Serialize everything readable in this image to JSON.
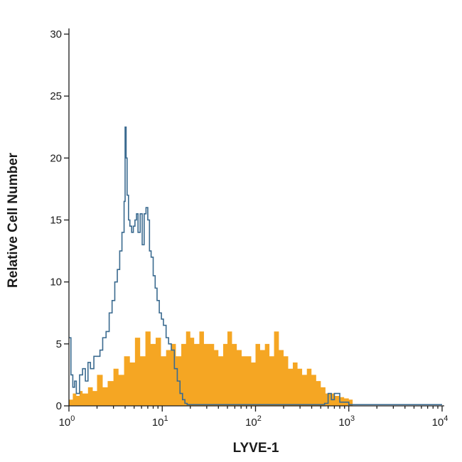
{
  "chart_data": {
    "type": "area",
    "title": "",
    "xlabel": "LYVE-1",
    "ylabel": "Relative Cell Number",
    "x_scale": "log",
    "xlim": [
      1,
      10000
    ],
    "ylim": [
      0,
      30
    ],
    "x_ticks": [
      {
        "value": 1,
        "base": "10",
        "exp": "0"
      },
      {
        "value": 10,
        "base": "10",
        "exp": "1"
      },
      {
        "value": 100,
        "base": "10",
        "exp": "2"
      },
      {
        "value": 1000,
        "base": "10",
        "exp": "3"
      },
      {
        "value": 10000,
        "base": "10",
        "exp": "4"
      }
    ],
    "y_ticks": [
      "0",
      "5",
      "10",
      "15",
      "20",
      "25",
      "30"
    ],
    "grid": false,
    "series": [
      {
        "style": "filled",
        "color": "#F5A623",
        "x": [
          1.0,
          1.1,
          1.2,
          1.3,
          1.4,
          1.6,
          1.8,
          2.0,
          2.3,
          2.6,
          3.0,
          3.4,
          3.9,
          4.5,
          5.1,
          5.8,
          6.6,
          7.5,
          8.5,
          9.7,
          11,
          12.5,
          14,
          16,
          18,
          20,
          22,
          25,
          28,
          32,
          36,
          40,
          45,
          50,
          56,
          63,
          71,
          80,
          90,
          100,
          112,
          126,
          141,
          158,
          178,
          200,
          224,
          251,
          282,
          316,
          355,
          398,
          447,
          501,
          562,
          631,
          708,
          794,
          891,
          1000,
          1100
        ],
        "y": [
          0.5,
          1.0,
          0.8,
          1.2,
          1.0,
          1.5,
          1.2,
          2.5,
          1.5,
          2.0,
          3.0,
          2.5,
          4.0,
          3.5,
          5.5,
          4.0,
          6.0,
          5.0,
          5.5,
          4.0,
          4.5,
          5.0,
          4.0,
          5.0,
          6.0,
          5.5,
          5.0,
          6.0,
          5.0,
          5.0,
          4.5,
          4.0,
          5.0,
          6.0,
          5.0,
          4.5,
          4.0,
          4.0,
          3.5,
          5.0,
          4.5,
          5.0,
          4.0,
          6.0,
          4.5,
          4.0,
          3.0,
          3.5,
          3.0,
          2.5,
          3.0,
          2.5,
          2.0,
          1.5,
          1.0,
          1.0,
          0.8,
          0.7,
          0.6,
          0.5,
          0.0
        ]
      },
      {
        "style": "line",
        "color": "#3A6A8F",
        "x": [
          1.0,
          1.05,
          1.1,
          1.15,
          1.2,
          1.3,
          1.4,
          1.5,
          1.6,
          1.7,
          1.85,
          2.0,
          2.15,
          2.3,
          2.5,
          2.7,
          2.9,
          3.1,
          3.3,
          3.5,
          3.7,
          3.9,
          4.0,
          4.1,
          4.2,
          4.35,
          4.5,
          4.7,
          4.9,
          5.1,
          5.3,
          5.5,
          5.8,
          6.1,
          6.4,
          6.7,
          7.0,
          7.3,
          7.6,
          8.0,
          8.4,
          8.8,
          9.3,
          9.8,
          10.3,
          11,
          11.7,
          12.5,
          13.5,
          14.5,
          15.5,
          16.5,
          17.5,
          18.5,
          20,
          30,
          50,
          100,
          200,
          400,
          550,
          600,
          650,
          700,
          800,
          1000,
          2000,
          5000,
          10000
        ],
        "y": [
          5.5,
          2.5,
          1.5,
          2.0,
          1.0,
          2.5,
          3.0,
          2.0,
          3.5,
          3.0,
          4.0,
          4.0,
          4.5,
          5.5,
          6.0,
          7.5,
          8.5,
          10.0,
          11.0,
          12.5,
          14.0,
          16.5,
          22.5,
          20.0,
          17.0,
          15.0,
          14.5,
          14.0,
          14.5,
          15.0,
          15.5,
          14.0,
          15.5,
          13.0,
          15.5,
          16.0,
          15.0,
          12.5,
          12.0,
          10.5,
          9.5,
          8.5,
          7.5,
          7.0,
          6.5,
          5.5,
          5.0,
          4.5,
          3.0,
          2.0,
          1.0,
          0.5,
          0.2,
          0.1,
          0.1,
          0.1,
          0.1,
          0.1,
          0.1,
          0.1,
          0.2,
          1.0,
          0.5,
          1.0,
          0.3,
          0.1,
          0.1,
          0.1,
          0.1
        ]
      }
    ]
  }
}
